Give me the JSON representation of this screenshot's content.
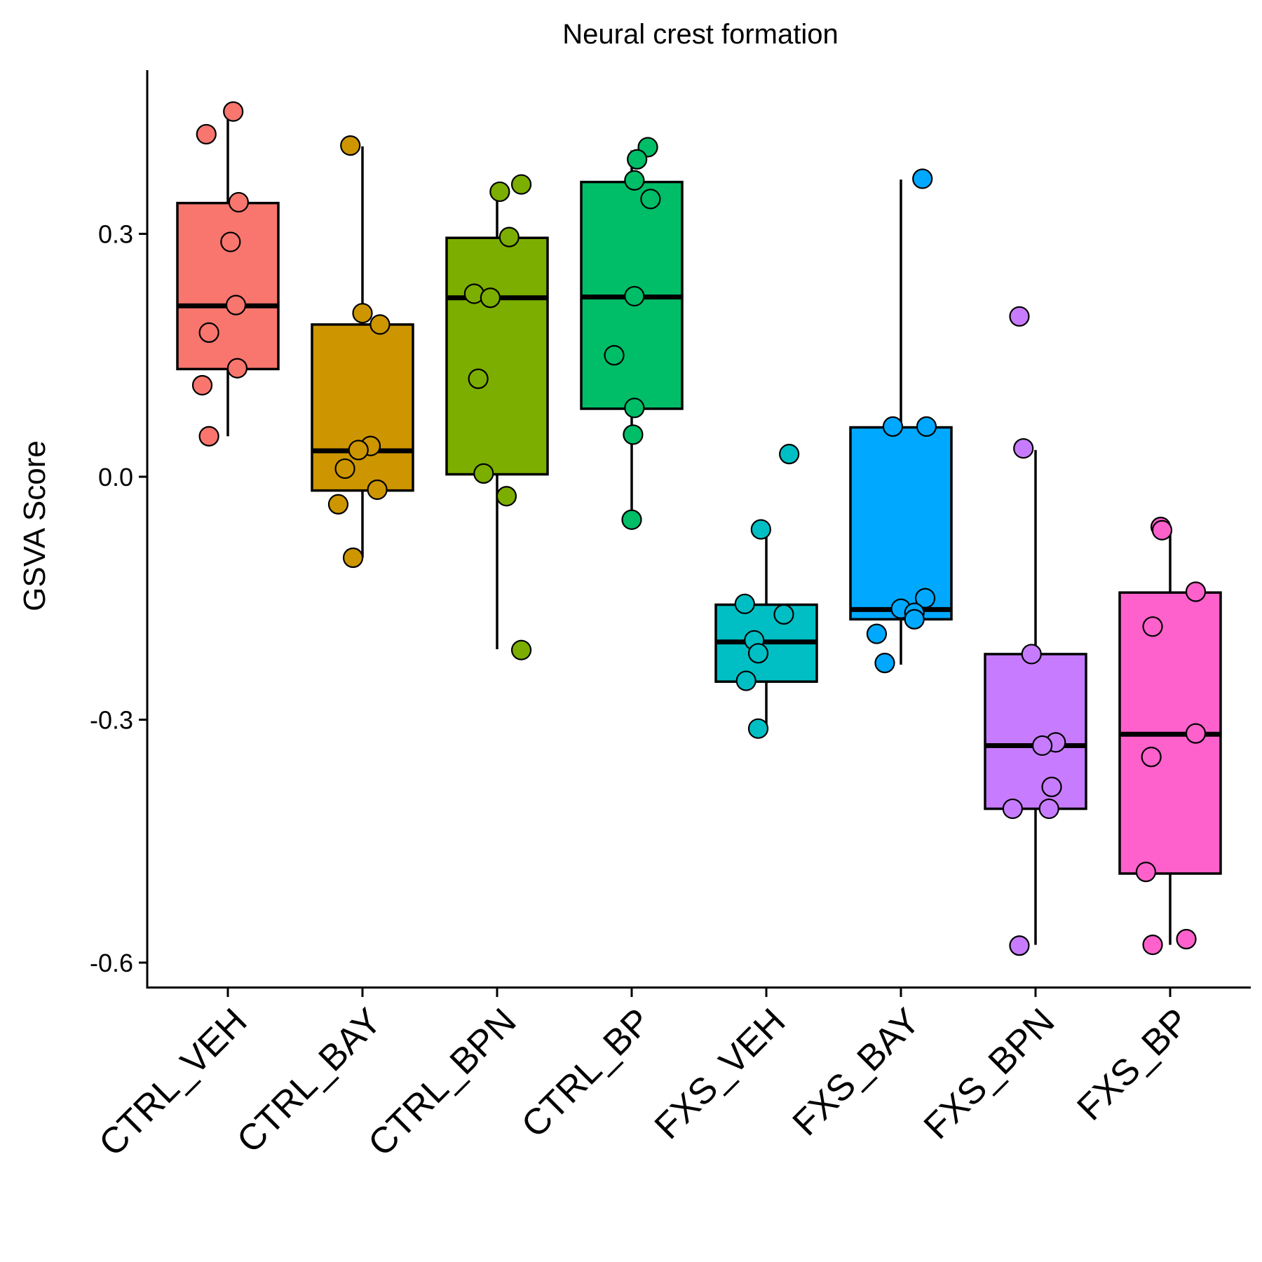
{
  "chart_data": {
    "type": "box",
    "title": "Neural crest formation",
    "xlabel": "",
    "ylabel": "GSVA Score",
    "ylim": [
      -0.63,
      0.5
    ],
    "yticks": [
      -0.6,
      -0.3,
      0.0,
      0.3
    ],
    "ytick_labels": [
      "-0.6",
      "-0.3",
      "0.0",
      "0.3"
    ],
    "grid": false,
    "legend": "none",
    "categories": [
      "CTRL_VEH",
      "CTRL_BAY",
      "CTRL_BPN",
      "CTRL_BP",
      "FXS_VEH",
      "FXS_BAY",
      "FXS_BPN",
      "FXS_BP"
    ],
    "colors": [
      "#F8766D",
      "#CD9600",
      "#7CAE00",
      "#00BE67",
      "#00BFC4",
      "#00A9FF",
      "#C77CFF",
      "#FF61CC"
    ],
    "boxes": [
      {
        "category": "CTRL_VEH",
        "whisker_low": 0.05,
        "q1": 0.133,
        "median": 0.211,
        "q3": 0.338,
        "whisker_high": 0.452
      },
      {
        "category": "CTRL_BAY",
        "whisker_low": -0.1,
        "q1": -0.017,
        "median": 0.032,
        "q3": 0.188,
        "whisker_high": 0.408
      },
      {
        "category": "CTRL_BPN",
        "whisker_low": -0.213,
        "q1": 0.003,
        "median": 0.221,
        "q3": 0.295,
        "whisker_high": 0.355
      },
      {
        "category": "CTRL_BP",
        "whisker_low": -0.053,
        "q1": 0.084,
        "median": 0.222,
        "q3": 0.364,
        "whisker_high": 0.403
      },
      {
        "category": "FXS_VEH",
        "whisker_low": -0.311,
        "q1": -0.253,
        "median": -0.204,
        "q3": -0.158,
        "whisker_high": -0.065
      },
      {
        "category": "FXS_BAY",
        "whisker_low": -0.232,
        "q1": -0.176,
        "median": -0.164,
        "q3": 0.061,
        "whisker_high": 0.367
      },
      {
        "category": "FXS_BPN",
        "whisker_low": -0.578,
        "q1": -0.41,
        "median": -0.332,
        "q3": -0.219,
        "whisker_high": 0.033
      },
      {
        "category": "FXS_BP",
        "whisker_low": -0.578,
        "q1": -0.49,
        "median": -0.318,
        "q3": -0.143,
        "whisker_high": -0.066
      }
    ],
    "points": [
      {
        "category": "CTRL_VEH",
        "x_offset": 0.04,
        "y": 0.451
      },
      {
        "category": "CTRL_VEH",
        "x_offset": -0.16,
        "y": 0.423
      },
      {
        "category": "CTRL_VEH",
        "x_offset": 0.08,
        "y": 0.339
      },
      {
        "category": "CTRL_VEH",
        "x_offset": 0.02,
        "y": 0.29
      },
      {
        "category": "CTRL_VEH",
        "x_offset": 0.06,
        "y": 0.212
      },
      {
        "category": "CTRL_VEH",
        "x_offset": -0.14,
        "y": 0.178
      },
      {
        "category": "CTRL_VEH",
        "x_offset": 0.07,
        "y": 0.134
      },
      {
        "category": "CTRL_VEH",
        "x_offset": -0.19,
        "y": 0.113
      },
      {
        "category": "CTRL_VEH",
        "x_offset": -0.14,
        "y": 0.05
      },
      {
        "category": "CTRL_BAY",
        "x_offset": -0.09,
        "y": 0.409
      },
      {
        "category": "CTRL_BAY",
        "x_offset": 0.0,
        "y": 0.202
      },
      {
        "category": "CTRL_BAY",
        "x_offset": 0.13,
        "y": 0.188
      },
      {
        "category": "CTRL_BAY",
        "x_offset": 0.06,
        "y": 0.038
      },
      {
        "category": "CTRL_BAY",
        "x_offset": -0.03,
        "y": 0.033
      },
      {
        "category": "CTRL_BAY",
        "x_offset": -0.13,
        "y": 0.01
      },
      {
        "category": "CTRL_BAY",
        "x_offset": 0.11,
        "y": -0.016
      },
      {
        "category": "CTRL_BAY",
        "x_offset": -0.18,
        "y": -0.034
      },
      {
        "category": "CTRL_BAY",
        "x_offset": -0.07,
        "y": -0.1
      },
      {
        "category": "CTRL_BPN",
        "x_offset": 0.18,
        "y": 0.361
      },
      {
        "category": "CTRL_BPN",
        "x_offset": 0.02,
        "y": 0.352
      },
      {
        "category": "CTRL_BPN",
        "x_offset": 0.09,
        "y": 0.296
      },
      {
        "category": "CTRL_BPN",
        "x_offset": -0.17,
        "y": 0.226
      },
      {
        "category": "CTRL_BPN",
        "x_offset": -0.05,
        "y": 0.221
      },
      {
        "category": "CTRL_BPN",
        "x_offset": -0.14,
        "y": 0.121
      },
      {
        "category": "CTRL_BPN",
        "x_offset": -0.1,
        "y": 0.004
      },
      {
        "category": "CTRL_BPN",
        "x_offset": 0.07,
        "y": -0.024
      },
      {
        "category": "CTRL_BPN",
        "x_offset": 0.18,
        "y": -0.214
      },
      {
        "category": "CTRL_BP",
        "x_offset": 0.12,
        "y": 0.407
      },
      {
        "category": "CTRL_BP",
        "x_offset": 0.04,
        "y": 0.392
      },
      {
        "category": "CTRL_BP",
        "x_offset": 0.02,
        "y": 0.366
      },
      {
        "category": "CTRL_BP",
        "x_offset": 0.14,
        "y": 0.343
      },
      {
        "category": "CTRL_BP",
        "x_offset": 0.02,
        "y": 0.223
      },
      {
        "category": "CTRL_BP",
        "x_offset": -0.13,
        "y": 0.15
      },
      {
        "category": "CTRL_BP",
        "x_offset": 0.02,
        "y": 0.085
      },
      {
        "category": "CTRL_BP",
        "x_offset": 0.01,
        "y": 0.052
      },
      {
        "category": "CTRL_BP",
        "x_offset": 0.0,
        "y": -0.053
      },
      {
        "category": "FXS_VEH",
        "x_offset": 0.17,
        "y": 0.028
      },
      {
        "category": "FXS_VEH",
        "x_offset": -0.04,
        "y": -0.065
      },
      {
        "category": "FXS_VEH",
        "x_offset": -0.16,
        "y": -0.157
      },
      {
        "category": "FXS_VEH",
        "x_offset": 0.13,
        "y": -0.17
      },
      {
        "category": "FXS_VEH",
        "x_offset": -0.09,
        "y": -0.202
      },
      {
        "category": "FXS_VEH",
        "x_offset": -0.06,
        "y": -0.218
      },
      {
        "category": "FXS_VEH",
        "x_offset": -0.15,
        "y": -0.252
      },
      {
        "category": "FXS_VEH",
        "x_offset": -0.06,
        "y": -0.311
      },
      {
        "category": "FXS_BAY",
        "x_offset": 0.16,
        "y": 0.368
      },
      {
        "category": "FXS_BAY",
        "x_offset": -0.06,
        "y": 0.062
      },
      {
        "category": "FXS_BAY",
        "x_offset": 0.19,
        "y": 0.062
      },
      {
        "category": "FXS_BAY",
        "x_offset": 0.18,
        "y": -0.15
      },
      {
        "category": "FXS_BAY",
        "x_offset": 0.0,
        "y": -0.163
      },
      {
        "category": "FXS_BAY",
        "x_offset": 0.1,
        "y": -0.168
      },
      {
        "category": "FXS_BAY",
        "x_offset": 0.1,
        "y": -0.176
      },
      {
        "category": "FXS_BAY",
        "x_offset": -0.18,
        "y": -0.194
      },
      {
        "category": "FXS_BAY",
        "x_offset": -0.12,
        "y": -0.23
      },
      {
        "category": "FXS_BPN",
        "x_offset": -0.12,
        "y": 0.198
      },
      {
        "category": "FXS_BPN",
        "x_offset": -0.09,
        "y": 0.035
      },
      {
        "category": "FXS_BPN",
        "x_offset": -0.03,
        "y": -0.219
      },
      {
        "category": "FXS_BPN",
        "x_offset": 0.15,
        "y": -0.328
      },
      {
        "category": "FXS_BPN",
        "x_offset": 0.05,
        "y": -0.332
      },
      {
        "category": "FXS_BPN",
        "x_offset": 0.12,
        "y": -0.383
      },
      {
        "category": "FXS_BPN",
        "x_offset": -0.17,
        "y": -0.41
      },
      {
        "category": "FXS_BPN",
        "x_offset": 0.1,
        "y": -0.41
      },
      {
        "category": "FXS_BPN",
        "x_offset": -0.12,
        "y": -0.579
      },
      {
        "category": "FXS_BP",
        "x_offset": -0.07,
        "y": -0.062
      },
      {
        "category": "FXS_BP",
        "x_offset": -0.06,
        "y": -0.066
      },
      {
        "category": "FXS_BP",
        "x_offset": 0.19,
        "y": -0.142
      },
      {
        "category": "FXS_BP",
        "x_offset": -0.13,
        "y": -0.185
      },
      {
        "category": "FXS_BP",
        "x_offset": 0.19,
        "y": -0.317
      },
      {
        "category": "FXS_BP",
        "x_offset": -0.14,
        "y": -0.346
      },
      {
        "category": "FXS_BP",
        "x_offset": -0.18,
        "y": -0.488
      },
      {
        "category": "FXS_BP",
        "x_offset": -0.13,
        "y": -0.578
      },
      {
        "category": "FXS_BP",
        "x_offset": 0.12,
        "y": -0.571
      }
    ]
  }
}
